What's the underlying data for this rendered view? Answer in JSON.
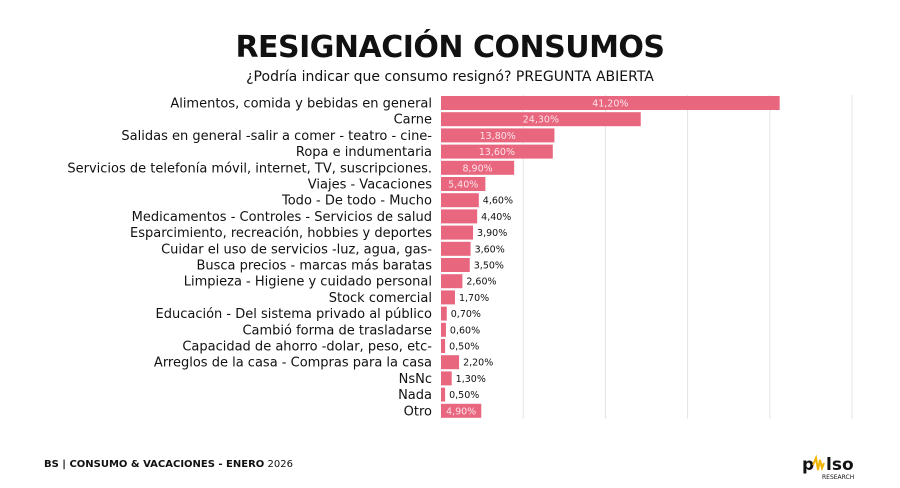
{
  "chart_data": {
    "type": "bar",
    "orientation": "horizontal",
    "title": "RESIGNACIÓN CONSUMOS",
    "subtitle": "¿Podría indicar que consumo resignó?  PREGUNTA ABIERTA",
    "categories": [
      "Alimentos, comida y bebidas en general",
      "Carne",
      "Salidas en general -salir a comer - teatro - cine-",
      "Ropa e indumentaria",
      "Servicios de telefonía móvil, internet, TV, suscripciones.",
      "Viajes - Vacaciones",
      "Todo - De todo - Mucho",
      "Medicamentos - Controles - Servicios de salud",
      "Esparcimiento, recreación, hobbies y deportes",
      "Cuidar el uso de servicios -luz, agua, gas-",
      "Busca precios - marcas más baratas",
      "Limpieza - Higiene y cuidado personal",
      "Stock comercial",
      "Educación - Del sistema privado al público",
      "Cambió forma de trasladarse",
      "Capacidad de ahorro -dolar, peso, etc-",
      "Arreglos de la casa - Compras para la casa",
      "NsNc",
      "Nada",
      "Otro"
    ],
    "values": [
      41.2,
      24.3,
      13.8,
      13.6,
      8.9,
      5.4,
      4.6,
      4.4,
      3.9,
      3.6,
      3.5,
      2.6,
      1.7,
      0.7,
      0.6,
      0.5,
      2.2,
      1.3,
      0.5,
      4.9
    ],
    "data_labels": [
      "41,20%",
      "24,30%",
      "13,80%",
      "13,60%",
      "8,90%",
      "5,40%",
      "4,60%",
      "4,40%",
      "3,90%",
      "3,60%",
      "3,50%",
      "2,60%",
      "1,70%",
      "0,70%",
      "0,60%",
      "0,50%",
      "2,20%",
      "1,30%",
      "0,50%",
      "4,90%"
    ],
    "xlim": [
      0,
      50
    ],
    "grid": true,
    "bar_color": "#e8677f"
  },
  "footer": {
    "brand": "BS | CONSUMO & VACACIONES - ENERO",
    "year": "2026"
  },
  "logo": {
    "text": "pulso",
    "sub": "RESEARCH"
  }
}
